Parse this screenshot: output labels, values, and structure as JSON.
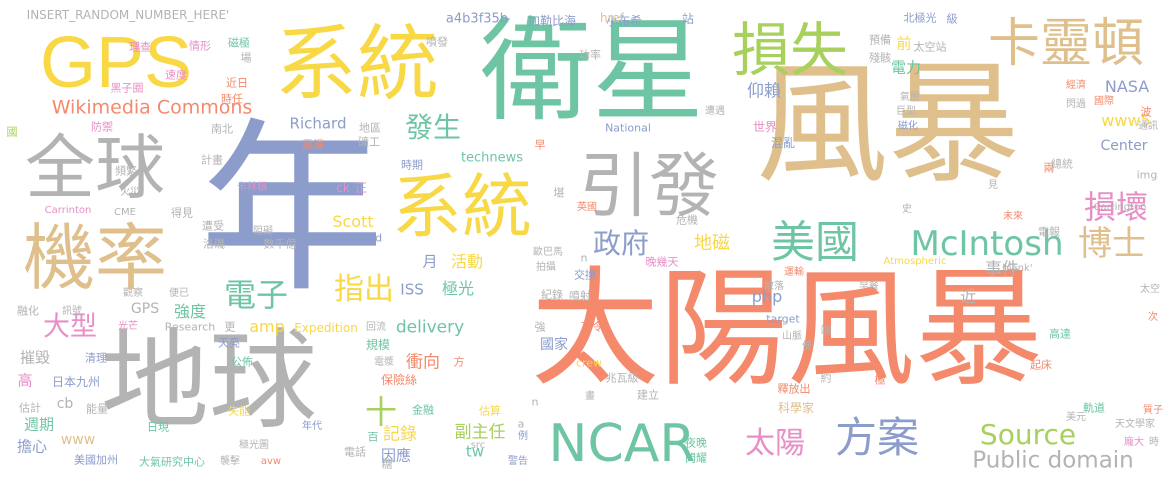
{
  "colors": {
    "salmon": "#F4896B",
    "teal": "#6EC5A3",
    "blue": "#8C9CCB",
    "pink": "#E78FC6",
    "lime": "#A8D05C",
    "gold": "#F8D845",
    "tan": "#DFC08C",
    "gray": "#B3B3B3"
  },
  "words": [
    {
      "t": "太陽風暴",
      "c": "salmon"
    },
    {
      "t": "風暴",
      "c": "tan"
    },
    {
      "t": "衛星",
      "c": "teal"
    },
    {
      "t": "年",
      "c": "blue"
    },
    {
      "t": "地球",
      "c": "gray"
    },
    {
      "t": "系統",
      "c": "gold"
    },
    {
      "t": "系統",
      "c": "gold"
    },
    {
      "t": "GPS",
      "c": "gold"
    },
    {
      "t": "全球",
      "c": "gray"
    },
    {
      "t": "機率",
      "c": "tan"
    },
    {
      "t": "引發",
      "c": "gray"
    },
    {
      "t": "損失",
      "c": "lime"
    },
    {
      "t": "卡靈頓",
      "c": "tan"
    },
    {
      "t": "NCAR",
      "c": "teal"
    },
    {
      "t": "美國",
      "c": "teal"
    },
    {
      "t": "McIntosh",
      "c": "teal"
    },
    {
      "t": "博士",
      "c": "tan"
    },
    {
      "t": "損壞",
      "c": "pink"
    },
    {
      "t": "方案",
      "c": "blue"
    },
    {
      "t": "太陽",
      "c": "pink"
    },
    {
      "t": "Source",
      "c": "lime"
    },
    {
      "t": "Public domain",
      "c": "gray"
    },
    {
      "t": "Wikimedia Commons",
      "c": "salmon"
    },
    {
      "t": "政府",
      "c": "blue"
    },
    {
      "t": "發生",
      "c": "teal"
    },
    {
      "t": "指出",
      "c": "gold"
    },
    {
      "t": "電子",
      "c": "teal"
    },
    {
      "t": "大型",
      "c": "pink"
    },
    {
      "t": "INSERT_RANDOM_NUMBER_HERE'",
      "c": "gray"
    },
    {
      "t": "a4b3f35b",
      "c": "blue"
    },
    {
      "t": "加勒比海",
      "c": "blue"
    },
    {
      "t": "小布希",
      "c": "blue"
    },
    {
      "t": "站",
      "c": "blue"
    },
    {
      "t": "href",
      "c": "tan"
    },
    {
      "t": "北極光",
      "c": "blue"
    },
    {
      "t": "級",
      "c": "blue"
    },
    {
      "t": "太空站",
      "c": "gray"
    },
    {
      "t": "預備",
      "c": "gray"
    },
    {
      "t": "殘骸",
      "c": "gray"
    },
    {
      "t": "功率",
      "c": "gray"
    },
    {
      "t": "電力",
      "c": "teal"
    },
    {
      "t": "前",
      "c": "gold"
    },
    {
      "t": "仰賴",
      "c": "blue"
    },
    {
      "t": "NASA",
      "c": "blue"
    },
    {
      "t": "www5",
      "c": "gold"
    },
    {
      "t": "Center",
      "c": "blue"
    },
    {
      "t": "Richard",
      "c": "blue"
    },
    {
      "t": "technews",
      "c": "teal"
    },
    {
      "t": "Scott",
      "c": "gold"
    },
    {
      "t": "zoneid",
      "c": "blue"
    },
    {
      "t": "ck",
      "c": "pink"
    },
    {
      "t": "正",
      "c": "pink"
    },
    {
      "t": "卡林頓",
      "c": "pink"
    },
    {
      "t": "數千億",
      "c": "gray"
    },
    {
      "t": "洛磯",
      "c": "gray"
    },
    {
      "t": "遭受",
      "c": "gray"
    },
    {
      "t": "得見",
      "c": "gray"
    },
    {
      "t": "火災",
      "c": "gray"
    },
    {
      "t": "CME",
      "c": "gray"
    },
    {
      "t": "Carrinton",
      "c": "pink"
    },
    {
      "t": "Carrington",
      "c": "gray"
    },
    {
      "t": "Atmospheric",
      "c": "gold"
    },
    {
      "t": "_blank'",
      "c": "gray"
    },
    {
      "t": "活動",
      "c": "gold"
    },
    {
      "t": "月",
      "c": "blue"
    },
    {
      "t": "地磁",
      "c": "gold"
    },
    {
      "t": "ISS",
      "c": "blue"
    },
    {
      "t": "極光",
      "c": "teal"
    },
    {
      "t": "delivery",
      "c": "teal"
    },
    {
      "t": "amp",
      "c": "gold"
    },
    {
      "t": "php",
      "c": "blue"
    },
    {
      "t": "強度",
      "c": "teal"
    },
    {
      "t": "GPS",
      "c": "gray"
    },
    {
      "t": "Research",
      "c": "gray"
    },
    {
      "t": "Expedition",
      "c": "gold"
    },
    {
      "t": "target",
      "c": "blue"
    },
    {
      "t": "國家",
      "c": "blue"
    },
    {
      "t": "衝向",
      "c": "salmon"
    },
    {
      "t": "摧毀",
      "c": "gray"
    },
    {
      "t": "十",
      "c": "lime"
    },
    {
      "t": "週期",
      "c": "teal"
    },
    {
      "t": "記錄",
      "c": "gold"
    },
    {
      "t": "副主任",
      "c": "lime"
    },
    {
      "t": "tw",
      "c": "teal"
    },
    {
      "t": "因應",
      "c": "blue"
    },
    {
      "t": "事件",
      "c": "gray"
    },
    {
      "t": "近",
      "c": "gray"
    },
    {
      "t": "高",
      "c": "pink"
    },
    {
      "t": "日本九州",
      "c": "blue"
    },
    {
      "t": "cb",
      "c": "gray"
    },
    {
      "t": "www",
      "c": "tan"
    },
    {
      "t": "擔心",
      "c": "blue"
    },
    {
      "t": "美國加州",
      "c": "blue"
    },
    {
      "t": "大氣研究中心",
      "c": "teal"
    },
    {
      "t": "科學家",
      "c": "tan"
    },
    {
      "t": "電報",
      "c": "gray"
    },
    {
      "t": "兩",
      "c": "salmon"
    },
    {
      "t": "img",
      "c": "gray"
    },
    {
      "t": "總統",
      "c": "gray"
    },
    {
      "t": "通訊",
      "c": "gray"
    },
    {
      "t": "波",
      "c": "salmon"
    },
    {
      "t": "國際",
      "c": "salmon"
    },
    {
      "t": "經濟",
      "c": "salmon"
    },
    {
      "t": "閃過",
      "c": "gray"
    },
    {
      "t": "氣層",
      "c": "gray"
    },
    {
      "t": "巨型",
      "c": "gray"
    },
    {
      "t": "磁化",
      "c": "blue"
    },
    {
      "t": "世界",
      "c": "pink"
    },
    {
      "t": "混亂",
      "c": "blue"
    },
    {
      "t": "National",
      "c": "blue"
    },
    {
      "t": "遭遇",
      "c": "gray"
    },
    {
      "t": "理查",
      "c": "pink"
    },
    {
      "t": "情形",
      "c": "pink"
    },
    {
      "t": "磁極",
      "c": "teal"
    },
    {
      "t": "場",
      "c": "gray"
    },
    {
      "t": "噴發",
      "c": "gray"
    },
    {
      "t": "速度",
      "c": "pink"
    },
    {
      "t": "黑子圈",
      "c": "pink"
    },
    {
      "t": "近日",
      "c": "salmon"
    },
    {
      "t": "時任",
      "c": "salmon"
    },
    {
      "t": "南北",
      "c": "gray"
    },
    {
      "t": "防禦",
      "c": "pink"
    },
    {
      "t": "國",
      "c": "lime"
    },
    {
      "t": "計畫",
      "c": "gray"
    },
    {
      "t": "頻繁",
      "c": "gray"
    },
    {
      "t": "地區",
      "c": "gray"
    },
    {
      "t": "震盪",
      "c": "salmon"
    },
    {
      "t": "礦工",
      "c": "gray"
    },
    {
      "t": "時期",
      "c": "blue"
    },
    {
      "t": "早",
      "c": "salmon"
    },
    {
      "t": "堪",
      "c": "gray"
    },
    {
      "t": "英國",
      "c": "salmon"
    },
    {
      "t": "危機",
      "c": "gray"
    },
    {
      "t": "晚幾天",
      "c": "pink"
    },
    {
      "t": "交換",
      "c": "blue"
    },
    {
      "t": "拍攝",
      "c": "gray"
    },
    {
      "t": "歐巴馬",
      "c": "gray"
    },
    {
      "t": "n",
      "c": "gray"
    },
    {
      "t": "紀錄",
      "c": "gray"
    },
    {
      "t": "噴射",
      "c": "gray"
    },
    {
      "t": "下令",
      "c": "salmon"
    },
    {
      "t": "強",
      "c": "gray"
    },
    {
      "t": "回流",
      "c": "gray"
    },
    {
      "t": "crew",
      "c": "gold"
    },
    {
      "t": "電漿",
      "c": "gray"
    },
    {
      "t": "方",
      "c": "salmon"
    },
    {
      "t": "規模",
      "c": "teal"
    },
    {
      "t": "保險絲",
      "c": "salmon"
    },
    {
      "t": "公佈",
      "c": "teal"
    },
    {
      "t": "天亮",
      "c": "blue"
    },
    {
      "t": "光芒",
      "c": "pink"
    },
    {
      "t": "清理",
      "c": "blue"
    },
    {
      "t": "融化",
      "c": "gray"
    },
    {
      "t": "觀察",
      "c": "gray"
    },
    {
      "t": "便已",
      "c": "gray"
    },
    {
      "t": "訊號",
      "c": "gray"
    },
    {
      "t": "更",
      "c": "gray"
    },
    {
      "t": "能量",
      "c": "gray"
    },
    {
      "t": "估計",
      "c": "gray"
    },
    {
      "t": "日現",
      "c": "teal"
    },
    {
      "t": "失能",
      "c": "gold"
    },
    {
      "t": "金融",
      "c": "teal"
    },
    {
      "t": "估算",
      "c": "gold"
    },
    {
      "t": "a",
      "c": "gray"
    },
    {
      "t": "n",
      "c": "gray"
    },
    {
      "t": "糖",
      "c": "gray"
    },
    {
      "t": "電話",
      "c": "gray"
    },
    {
      "t": "百",
      "c": "teal"
    },
    {
      "t": "年代",
      "c": "blue"
    },
    {
      "t": "極光圖",
      "c": "gray"
    },
    {
      "t": "襲擊",
      "c": "gray"
    },
    {
      "t": "avw",
      "c": "salmon"
    },
    {
      "t": "src",
      "c": "gray"
    },
    {
      "t": "警告",
      "c": "blue"
    },
    {
      "t": "例",
      "c": "blue"
    },
    {
      "t": "夜晚",
      "c": "teal"
    },
    {
      "t": "閃耀",
      "c": "teal"
    },
    {
      "t": "兆瓦級",
      "c": "gray"
    },
    {
      "t": "建立",
      "c": "gray"
    },
    {
      "t": "運輸",
      "c": "salmon"
    },
    {
      "t": "散落",
      "c": "gray"
    },
    {
      "t": "早餐",
      "c": "gray"
    },
    {
      "t": "端",
      "c": "gray"
    },
    {
      "t": "山脈",
      "c": "gray"
    },
    {
      "t": "便",
      "c": "gray"
    },
    {
      "t": "釋放出",
      "c": "salmon"
    },
    {
      "t": "約",
      "c": "gray"
    },
    {
      "t": "極",
      "c": "salmon"
    },
    {
      "t": "起床",
      "c": "salmon"
    },
    {
      "t": "高達",
      "c": "teal"
    },
    {
      "t": "太空",
      "c": "gray"
    },
    {
      "t": "次",
      "c": "salmon"
    },
    {
      "t": "軌道",
      "c": "teal"
    },
    {
      "t": "質子",
      "c": "salmon"
    },
    {
      "t": "天文學家",
      "c": "gray"
    },
    {
      "t": "美元",
      "c": "gray"
    },
    {
      "t": "龐大",
      "c": "pink"
    },
    {
      "t": "時",
      "c": "gray"
    },
    {
      "t": "見",
      "c": "gray"
    },
    {
      "t": "史",
      "c": "gray"
    },
    {
      "t": "未來",
      "c": "salmon"
    },
    {
      "t": "阻礙",
      "c": "gray"
    },
    {
      "t": "畫",
      "c": "gray"
    }
  ]
}
